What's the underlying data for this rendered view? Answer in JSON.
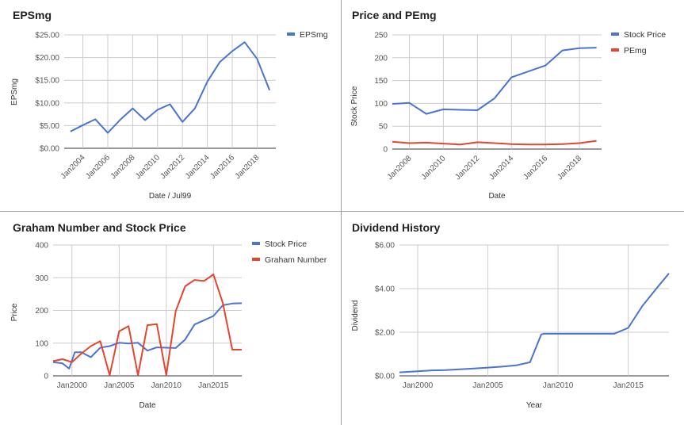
{
  "colors": {
    "blue": "#4a74d3",
    "red": "#e2472d",
    "grid": "#cccccc",
    "axis": "#555555"
  },
  "chart_data": [
    {
      "type": "line",
      "title": "EPSmg",
      "xlabel": "Date / Jul99",
      "ylabel": "EPSmg",
      "x_ticks": [
        "Jan2004",
        "Jan2006",
        "Jan2008",
        "Jan2010",
        "Jan2012",
        "Jan2014",
        "Jan2016",
        "Jan2018"
      ],
      "x_tick_years": [
        2004,
        2006,
        2008,
        2010,
        2012,
        2014,
        2016,
        2018
      ],
      "xlim": [
        2002.5,
        2019.5
      ],
      "y_ticks": [
        "$0.00",
        "$5.00",
        "$10.00",
        "$15.00",
        "$20.00",
        "$25.00"
      ],
      "ylim": [
        0,
        25
      ],
      "legend": "right",
      "series": [
        {
          "name": "EPSmg",
          "color": "#4a74d3",
          "x": [
            2003,
            2004,
            2005,
            2006,
            2007,
            2008,
            2009,
            2010,
            2011,
            2012,
            2013,
            2014,
            2015,
            2016,
            2017,
            2018,
            2019
          ],
          "y": [
            3.7,
            5.1,
            6.4,
            3.4,
            6.3,
            8.8,
            6.2,
            8.5,
            9.7,
            5.8,
            8.8,
            14.7,
            19,
            21.4,
            23.4,
            19.7,
            12.8
          ]
        }
      ]
    },
    {
      "type": "line",
      "title": "Price and PEmg",
      "xlabel": "Date",
      "ylabel": "Stock Price",
      "x_ticks": [
        "Jan2008",
        "Jan2010",
        "Jan2012",
        "Jan2014",
        "Jan2016",
        "Jan2018"
      ],
      "x_tick_years": [
        2008,
        2010,
        2012,
        2014,
        2016,
        2018
      ],
      "xlim": [
        2007,
        2019.3
      ],
      "y_ticks": [
        "0",
        "50",
        "100",
        "150",
        "200",
        "250"
      ],
      "ylim": [
        0,
        250
      ],
      "legend": "right",
      "series": [
        {
          "name": "Stock Price",
          "color": "#4a74d3",
          "x": [
            2007,
            2008,
            2009,
            2010,
            2011,
            2012,
            2013,
            2014,
            2015,
            2016,
            2017,
            2018,
            2019
          ],
          "y": [
            99,
            101,
            77,
            87,
            86,
            85,
            111,
            157,
            170,
            183,
            216,
            221,
            222
          ]
        },
        {
          "name": "PEmg",
          "color": "#e2472d",
          "x": [
            2007,
            2008,
            2009,
            2010,
            2011,
            2012,
            2013,
            2014,
            2015,
            2016,
            2017,
            2018,
            2019
          ],
          "y": [
            16,
            13,
            14,
            12,
            10,
            15,
            13,
            11,
            10,
            10,
            11,
            13,
            18
          ]
        }
      ]
    },
    {
      "type": "line",
      "title": "Graham Number and Stock Price",
      "xlabel": "Date",
      "ylabel": "Price",
      "x_ticks": [
        "Jan2000",
        "Jan2005",
        "Jan2010",
        "Jan2015"
      ],
      "x_tick_years": [
        2000,
        2005,
        2010,
        2015
      ],
      "xlim": [
        1998,
        2018
      ],
      "y_ticks": [
        "0",
        "100",
        "200",
        "300",
        "400"
      ],
      "ylim": [
        0,
        400
      ],
      "legend": "right",
      "series": [
        {
          "name": "Stock Price",
          "color": "#4a74d3",
          "x": [
            1998,
            1999,
            1999.7,
            2000.3,
            2001,
            2002,
            2003,
            2004,
            2005,
            2006,
            2007,
            2008,
            2009,
            2010,
            2011,
            2012,
            2013,
            2014,
            2015,
            2016,
            2017,
            2018
          ],
          "y": [
            42,
            38,
            22,
            72,
            72,
            57,
            86,
            91,
            101,
            99,
            101,
            77,
            87,
            86,
            85,
            111,
            157,
            170,
            183,
            216,
            221,
            222
          ]
        },
        {
          "name": "Graham Number",
          "color": "#e2472d",
          "x": [
            1998,
            1999,
            2000,
            2001,
            2002,
            2003,
            2004,
            2005,
            2006,
            2007,
            2008,
            2009,
            2010,
            2011,
            2012,
            2013,
            2014,
            2015,
            2016,
            2017,
            2018
          ],
          "y": [
            45,
            51,
            42,
            68,
            91,
            106,
            2,
            136,
            152,
            2,
            155,
            158,
            2,
            198,
            274,
            293,
            290,
            310,
            222,
            80,
            80
          ]
        }
      ]
    },
    {
      "type": "line",
      "title": "Dividend History",
      "xlabel": "Year",
      "ylabel": "Dividend",
      "x_ticks": [
        "Jan2000",
        "Jan2005",
        "Jan2010",
        "Jan2015"
      ],
      "x_tick_years": [
        2000,
        2005,
        2010,
        2015
      ],
      "xlim": [
        1998.7,
        2017.9
      ],
      "y_ticks": [
        "$0.00",
        "$2.00",
        "$4.00",
        "$6.00"
      ],
      "ylim": [
        0,
        6
      ],
      "legend": "none",
      "series": [
        {
          "name": "",
          "color": "#4a74d3",
          "x": [
            1998.7,
            2000,
            2001,
            2002,
            2003,
            2004,
            2005,
            2006,
            2007,
            2008,
            2008.8,
            2009,
            2010,
            2011,
            2012,
            2013,
            2014,
            2015,
            2016,
            2017,
            2017.9
          ],
          "y": [
            0.16,
            0.21,
            0.25,
            0.26,
            0.3,
            0.34,
            0.38,
            0.42,
            0.48,
            0.62,
            1.9,
            1.93,
            1.93,
            1.93,
            1.93,
            1.93,
            1.93,
            2.2,
            3.2,
            4.0,
            4.7
          ]
        }
      ]
    }
  ]
}
